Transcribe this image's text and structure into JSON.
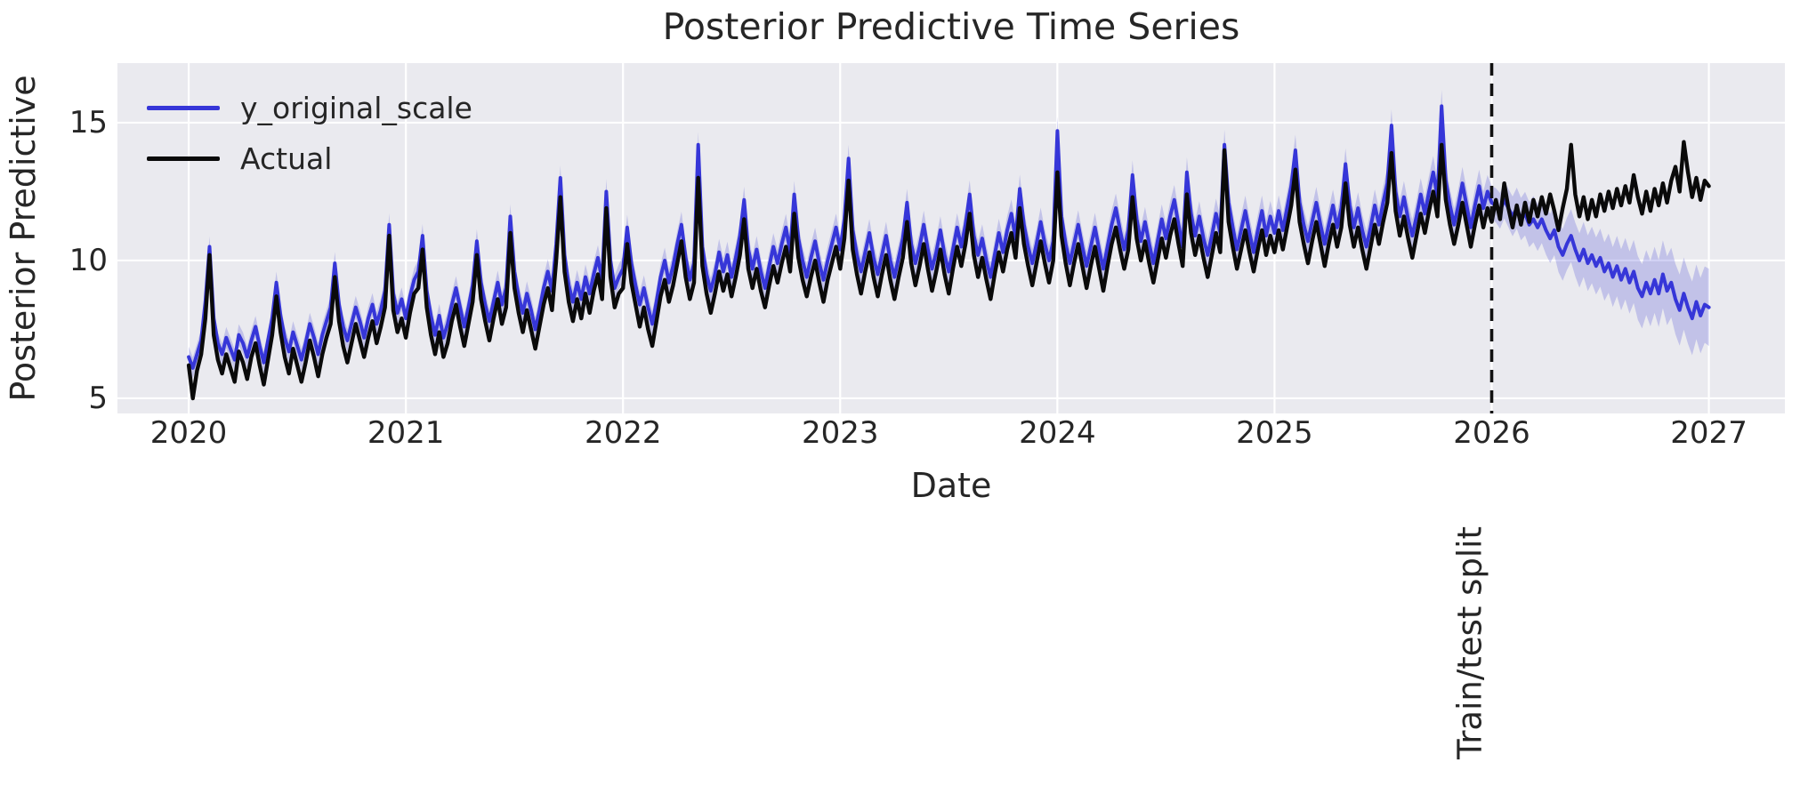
{
  "title": "Posterior Predictive Time Series",
  "axes": {
    "xlabel": "Date",
    "ylabel": "Posterior Predictive",
    "x_ticks": [
      2020,
      2021,
      2022,
      2023,
      2024,
      2025,
      2026,
      2027
    ],
    "y_ticks": [
      5,
      10,
      15
    ],
    "xlim": [
      2019.672,
      2027.35
    ],
    "ylim": [
      4.45,
      17.16
    ],
    "grid": true,
    "axes_background": "#eaeaef",
    "grid_color": "#ffffff",
    "text_color": "#262626"
  },
  "legend": {
    "position": "upper left",
    "items": [
      {
        "label": "y_original_scale",
        "color": "#3636d8"
      },
      {
        "label": "Actual",
        "color": "#0a0a0a"
      }
    ]
  },
  "annotations": {
    "split_label": "Train/test split",
    "split_x": 2026.0,
    "split_line_style": "dashed",
    "split_line_color": "#111111"
  },
  "chart_data": {
    "type": "line",
    "title": "Posterior Predictive Time Series",
    "xlabel": "Date",
    "ylabel": "Posterior Predictive",
    "x_ticks": [
      2020,
      2021,
      2022,
      2023,
      2024,
      2025,
      2026,
      2027
    ],
    "y_ticks": [
      5,
      10,
      15
    ],
    "xlim": [
      2019.672,
      2027.35
    ],
    "ylim": [
      4.45,
      17.16
    ],
    "x_start": 2020.0,
    "points_per_year": 52,
    "vline": {
      "x": 2026.0,
      "style": "dashed",
      "label": "Train/test split"
    },
    "series": [
      {
        "name": "y_original_scale",
        "color": "#3636d8",
        "values": [
          6.5,
          6.1,
          6.6,
          7.1,
          8.5,
          10.5,
          7.9,
          7.0,
          6.6,
          7.2,
          6.8,
          6.4,
          7.3,
          7.0,
          6.5,
          7.1,
          7.6,
          6.9,
          6.3,
          7.1,
          7.9,
          9.2,
          8.0,
          7.2,
          6.7,
          7.4,
          6.9,
          6.4,
          7.0,
          7.7,
          7.2,
          6.6,
          7.3,
          7.8,
          8.3,
          9.9,
          8.4,
          7.6,
          7.1,
          7.7,
          8.3,
          7.8,
          7.2,
          7.9,
          8.4,
          7.7,
          8.2,
          8.9,
          11.3,
          8.8,
          8.1,
          8.6,
          7.9,
          8.7,
          9.3,
          9.6,
          10.9,
          8.9,
          8.0,
          7.3,
          8.0,
          7.2,
          7.7,
          8.4,
          9.0,
          8.3,
          7.6,
          8.3,
          9.1,
          10.7,
          9.2,
          8.4,
          7.8,
          8.5,
          9.2,
          8.4,
          9.0,
          11.6,
          9.6,
          8.7,
          8.1,
          8.8,
          8.2,
          7.5,
          8.2,
          9.0,
          9.6,
          8.9,
          10.6,
          13.0,
          10.2,
          9.1,
          8.5,
          9.2,
          8.6,
          9.4,
          8.8,
          9.5,
          10.1,
          9.3,
          12.5,
          10.0,
          9.0,
          9.4,
          9.7,
          11.2,
          9.9,
          9.1,
          8.4,
          9.0,
          8.3,
          7.7,
          8.5,
          9.4,
          10.0,
          9.2,
          9.8,
          10.6,
          11.3,
          10.1,
          9.3,
          9.9,
          14.2,
          10.5,
          9.5,
          8.9,
          9.5,
          10.3,
          9.6,
          10.2,
          9.4,
          10.1,
          10.9,
          12.2,
          10.4,
          9.7,
          10.4,
          9.6,
          9.0,
          9.8,
          10.5,
          9.9,
          10.6,
          11.2,
          10.3,
          12.4,
          10.8,
          10.0,
          9.4,
          10.1,
          10.7,
          9.9,
          9.3,
          10.0,
          10.6,
          11.2,
          10.4,
          11.5,
          13.7,
          11.1,
          10.2,
          9.6,
          10.3,
          11.0,
          10.1,
          9.5,
          10.2,
          10.9,
          10.0,
          9.4,
          10.1,
          10.8,
          12.1,
          10.6,
          9.9,
          10.5,
          11.3,
          10.4,
          9.7,
          10.3,
          11.1,
          10.2,
          9.6,
          10.4,
          11.2,
          10.5,
          11.3,
          12.4,
          10.9,
          10.2,
          10.8,
          10.0,
          9.4,
          10.2,
          11.0,
          10.3,
          11.1,
          11.7,
          10.8,
          12.6,
          11.3,
          10.5,
          9.9,
          10.6,
          11.4,
          10.6,
          10.0,
          10.7,
          14.7,
          11.6,
          10.6,
          9.9,
          10.6,
          11.3,
          10.5,
          9.8,
          10.5,
          11.2,
          10.4,
          9.7,
          10.5,
          11.3,
          11.9,
          11.1,
          10.4,
          11.1,
          13.1,
          11.5,
          10.7,
          11.4,
          10.6,
          9.9,
          10.7,
          11.5,
          10.8,
          11.6,
          12.2,
          11.3,
          10.5,
          13.2,
          11.7,
          10.9,
          11.6,
          10.8,
          10.2,
          10.9,
          11.7,
          11.0,
          14.2,
          12.1,
          11.2,
          10.4,
          11.1,
          11.8,
          11.0,
          10.3,
          11.1,
          11.8,
          10.9,
          11.6,
          11.0,
          11.8,
          11.1,
          11.9,
          12.7,
          14.0,
          12.1,
          11.3,
          10.7,
          11.4,
          12.1,
          11.3,
          10.6,
          11.3,
          12.0,
          11.2,
          11.9,
          13.5,
          12.0,
          11.2,
          11.9,
          11.1,
          10.5,
          11.2,
          12.0,
          11.3,
          12.1,
          12.8,
          14.9,
          12.5,
          11.6,
          12.3,
          11.5,
          10.9,
          11.6,
          12.4,
          11.7,
          12.5,
          13.2,
          12.3,
          15.6,
          12.9,
          12.0,
          11.3,
          12.0,
          12.8,
          12.0,
          11.2,
          12.0,
          12.7,
          11.9,
          12.5,
          12.1,
          12.0,
          11.8,
          12.2,
          11.9,
          11.6,
          11.9,
          11.5,
          11.7,
          11.3,
          11.5,
          11.2,
          11.5,
          11.1,
          10.8,
          11.1,
          10.5,
          10.2,
          10.6,
          10.9,
          10.4,
          10.0,
          10.4,
          9.9,
          10.2,
          9.8,
          10.1,
          9.6,
          9.9,
          9.4,
          9.8,
          9.3,
          9.7,
          9.2,
          9.6,
          9.0,
          8.7,
          9.2,
          8.8,
          9.3,
          8.8,
          9.5,
          8.9,
          9.2,
          8.6,
          8.2,
          8.8,
          8.3,
          7.9,
          8.5,
          8.0,
          8.4,
          8.3
        ]
      },
      {
        "name": "Actual",
        "color": "#0a0a0a",
        "values": [
          6.2,
          5.0,
          6.0,
          6.6,
          7.9,
          10.2,
          7.3,
          6.4,
          5.9,
          6.6,
          6.1,
          5.6,
          6.7,
          6.3,
          5.7,
          6.5,
          7.0,
          6.2,
          5.5,
          6.4,
          7.3,
          8.7,
          7.4,
          6.5,
          5.9,
          6.8,
          6.2,
          5.6,
          6.3,
          7.1,
          6.5,
          5.8,
          6.6,
          7.2,
          7.7,
          9.4,
          7.8,
          6.9,
          6.3,
          7.0,
          7.7,
          7.1,
          6.5,
          7.2,
          7.8,
          7.0,
          7.6,
          8.3,
          10.9,
          8.2,
          7.4,
          7.9,
          7.2,
          8.1,
          8.8,
          9.0,
          10.4,
          8.3,
          7.3,
          6.6,
          7.4,
          6.5,
          7.0,
          7.8,
          8.4,
          7.6,
          6.9,
          7.7,
          8.5,
          10.2,
          8.6,
          7.8,
          7.1,
          7.9,
          8.6,
          7.7,
          8.3,
          11.0,
          9.0,
          8.1,
          7.4,
          8.2,
          7.5,
          6.8,
          7.6,
          8.4,
          9.0,
          8.2,
          10.0,
          12.3,
          9.6,
          8.5,
          7.8,
          8.6,
          7.9,
          8.8,
          8.1,
          8.9,
          9.5,
          8.6,
          11.9,
          9.4,
          8.3,
          8.8,
          9.0,
          10.6,
          9.2,
          8.4,
          7.6,
          8.3,
          7.5,
          6.9,
          7.8,
          8.7,
          9.3,
          8.5,
          9.1,
          9.9,
          10.7,
          9.4,
          8.6,
          9.2,
          13.0,
          9.8,
          8.8,
          8.1,
          8.8,
          9.6,
          8.9,
          9.5,
          8.7,
          9.4,
          10.2,
          11.5,
          9.7,
          9.0,
          9.7,
          8.9,
          8.3,
          9.1,
          9.8,
          9.2,
          9.9,
          10.5,
          9.6,
          11.7,
          10.1,
          9.3,
          8.7,
          9.4,
          10.0,
          9.2,
          8.5,
          9.3,
          9.9,
          10.5,
          9.7,
          10.8,
          12.9,
          10.4,
          9.5,
          8.8,
          9.6,
          10.3,
          9.4,
          8.7,
          9.5,
          10.2,
          9.3,
          8.6,
          9.4,
          10.1,
          11.4,
          9.9,
          9.1,
          9.8,
          10.6,
          9.7,
          8.9,
          9.6,
          10.4,
          9.5,
          8.8,
          9.7,
          10.5,
          9.8,
          10.6,
          11.7,
          10.2,
          9.4,
          10.1,
          9.3,
          8.6,
          9.5,
          10.3,
          9.6,
          10.4,
          11.0,
          10.1,
          11.9,
          10.6,
          9.8,
          9.1,
          9.9,
          10.7,
          9.9,
          9.2,
          10.0,
          13.2,
          10.9,
          9.9,
          9.1,
          9.9,
          10.6,
          9.8,
          9.0,
          9.8,
          10.5,
          9.7,
          8.9,
          9.8,
          10.6,
          11.2,
          10.4,
          9.7,
          10.4,
          12.3,
          10.8,
          10.0,
          10.7,
          9.9,
          9.2,
          10.0,
          10.8,
          10.1,
          10.9,
          11.5,
          10.6,
          9.8,
          12.4,
          11.0,
          10.2,
          10.9,
          10.1,
          9.4,
          10.2,
          11.0,
          10.3,
          14.0,
          11.4,
          10.5,
          9.7,
          10.4,
          11.1,
          10.3,
          9.6,
          10.4,
          11.1,
          10.2,
          10.9,
          10.3,
          11.1,
          10.4,
          11.2,
          12.0,
          13.3,
          11.4,
          10.6,
          9.9,
          10.7,
          11.4,
          10.6,
          9.8,
          10.6,
          11.3,
          10.5,
          11.2,
          12.8,
          11.3,
          10.5,
          11.2,
          10.4,
          9.7,
          10.5,
          11.3,
          10.6,
          11.4,
          12.1,
          13.9,
          11.8,
          10.9,
          11.6,
          10.8,
          10.1,
          10.9,
          11.7,
          11.0,
          11.8,
          12.5,
          11.6,
          14.2,
          12.2,
          11.3,
          10.6,
          11.3,
          12.1,
          11.3,
          10.5,
          11.3,
          12.0,
          11.2,
          11.9,
          11.4,
          12.2,
          11.5,
          12.8,
          11.9,
          11.2,
          12.0,
          11.3,
          12.1,
          11.4,
          12.2,
          11.6,
          12.3,
          11.7,
          12.4,
          11.8,
          11.1,
          11.9,
          12.6,
          14.2,
          12.4,
          11.6,
          12.3,
          11.5,
          12.2,
          11.6,
          12.4,
          11.8,
          12.5,
          11.9,
          12.6,
          12.0,
          12.7,
          12.1,
          13.1,
          12.3,
          11.7,
          12.5,
          11.8,
          12.6,
          12.0,
          12.8,
          12.1,
          12.9,
          13.4,
          12.5,
          14.3,
          13.2,
          12.3,
          13.0,
          12.2,
          12.9,
          12.7
        ]
      }
    ],
    "band": {
      "series": "y_original_scale",
      "fill": "rgba(90,90,215,0.28)",
      "halfwidth_keyframes": [
        [
          2020.0,
          0.38
        ],
        [
          2021.0,
          0.42
        ],
        [
          2022.0,
          0.46
        ],
        [
          2023.0,
          0.5
        ],
        [
          2024.0,
          0.52
        ],
        [
          2025.0,
          0.56
        ],
        [
          2026.0,
          0.6
        ],
        [
          2026.2,
          0.85
        ],
        [
          2026.5,
          1.05
        ],
        [
          2026.75,
          1.2
        ],
        [
          2027.0,
          1.4
        ]
      ]
    }
  }
}
